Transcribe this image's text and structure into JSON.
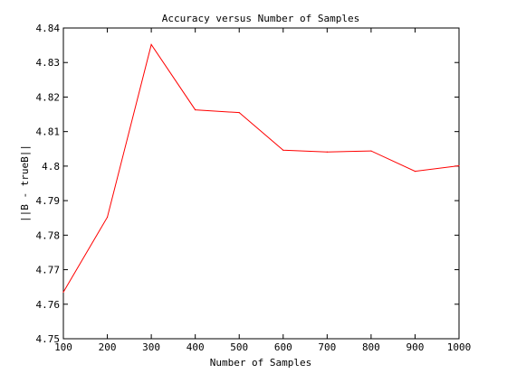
{
  "chart_data": {
    "type": "line",
    "title": "Accuracy versus Number of Samples",
    "xlabel": "Number of Samples",
    "ylabel": "||B - trueB||",
    "xlim": [
      100,
      1000
    ],
    "ylim": [
      4.75,
      4.84
    ],
    "xticks": [
      100,
      200,
      300,
      400,
      500,
      600,
      700,
      800,
      900,
      1000
    ],
    "xtick_labels": [
      "100",
      "200",
      "300",
      "400",
      "500",
      "600",
      "700",
      "800",
      "900",
      "1000"
    ],
    "yticks": [
      4.75,
      4.76,
      4.77,
      4.78,
      4.79,
      4.8,
      4.81,
      4.82,
      4.83,
      4.84
    ],
    "ytick_labels": [
      "4.75",
      "4.76",
      "4.77",
      "4.78",
      "4.79",
      "4.8",
      "4.81",
      "4.82",
      "4.83",
      "4.84"
    ],
    "grid": false,
    "legend": false,
    "series": [
      {
        "color": "#ff0000",
        "x": [
          100,
          200,
          300,
          400,
          500,
          600,
          700,
          800,
          900,
          1000
        ],
        "y": [
          4.7635,
          4.7852,
          4.8352,
          4.8163,
          4.8155,
          4.8046,
          4.8041,
          4.8044,
          4.7985,
          4.8001
        ]
      }
    ]
  }
}
